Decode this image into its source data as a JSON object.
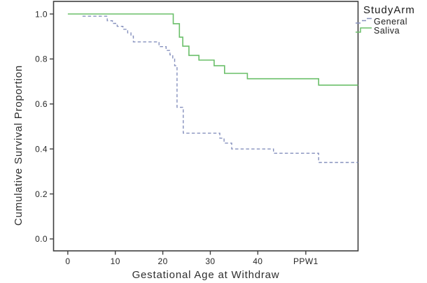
{
  "figure": {
    "background": "#ffffff",
    "frame_color": "#3f3f3f",
    "tick_color": "#3f3f3f"
  },
  "chart_data": {
    "type": "line",
    "variant": "kaplan_meier_step",
    "title": "",
    "xlabel": "Gestational Age at Withdraw",
    "ylabel": "Cumulative Survival Proportion",
    "grid": false,
    "xlim": [
      -3.0,
      61.1
    ],
    "ylim": [
      -0.053,
      1.056
    ],
    "x_ticks": [
      {
        "value": 0,
        "label": "0"
      },
      {
        "value": 10,
        "label": "10"
      },
      {
        "value": 20,
        "label": "20"
      },
      {
        "value": 30,
        "label": "30"
      },
      {
        "value": 40,
        "label": "40"
      },
      {
        "value": 50.1,
        "label": "PPW1"
      }
    ],
    "y_ticks": [
      {
        "value": 0.0,
        "label": "0.0"
      },
      {
        "value": 0.2,
        "label": "0.2"
      },
      {
        "value": 0.4,
        "label": "0.4"
      },
      {
        "value": 0.6,
        "label": "0.6"
      },
      {
        "value": 0.8,
        "label": "0.8"
      },
      {
        "value": 1.0,
        "label": "1.0"
      }
    ],
    "legend": {
      "title": "StudyArm",
      "position": "outside-top-right",
      "entries": [
        {
          "label": "General",
          "series": "General"
        },
        {
          "label": "Saliva",
          "series": "Saliva"
        }
      ]
    },
    "series": [
      {
        "name": "General",
        "color": "#8590bd",
        "line_style": "dashed",
        "end_x": 61.1,
        "steps": [
          [
            3.1,
            0.99
          ],
          [
            8.3,
            0.97
          ],
          [
            9.4,
            0.958
          ],
          [
            10.4,
            0.945
          ],
          [
            11.6,
            0.932
          ],
          [
            12.6,
            0.916
          ],
          [
            13.3,
            0.902
          ],
          [
            13.8,
            0.876
          ],
          [
            19.2,
            0.855
          ],
          [
            20.7,
            0.838
          ],
          [
            21.5,
            0.818
          ],
          [
            22.1,
            0.8
          ],
          [
            22.5,
            0.77
          ],
          [
            23.0,
            0.585
          ],
          [
            24.3,
            0.47
          ],
          [
            32.0,
            0.448
          ],
          [
            32.9,
            0.426
          ],
          [
            34.5,
            0.4
          ],
          [
            43.3,
            0.381
          ],
          [
            52.8,
            0.34
          ]
        ]
      },
      {
        "name": "Saliva",
        "color": "#6abf69",
        "line_style": "solid",
        "end_x": 61.1,
        "steps": [
          [
            0,
            1.0
          ],
          [
            22.2,
            0.957
          ],
          [
            23.5,
            0.897
          ],
          [
            24.2,
            0.857
          ],
          [
            25.5,
            0.816
          ],
          [
            27.6,
            0.795
          ],
          [
            30.8,
            0.77
          ],
          [
            33.0,
            0.736
          ],
          [
            37.8,
            0.712
          ],
          [
            52.8,
            0.684
          ]
        ]
      }
    ]
  }
}
